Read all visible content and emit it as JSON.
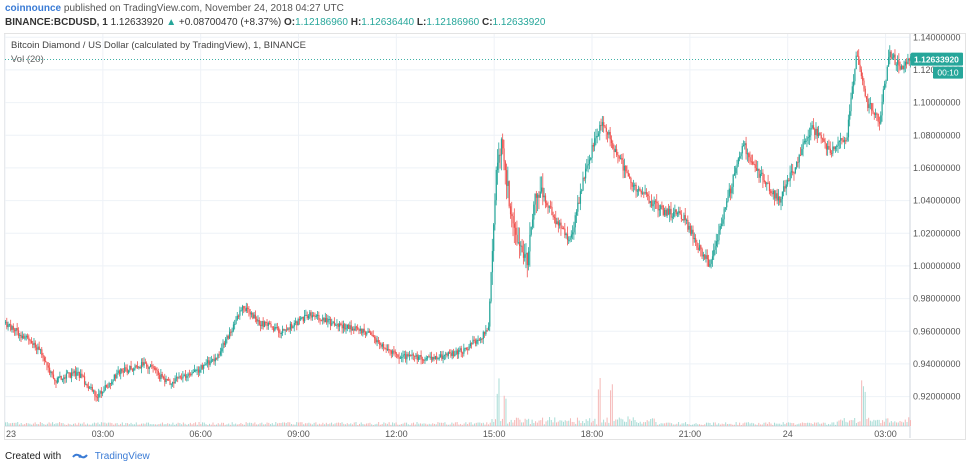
{
  "header": {
    "publisher": "coinnounce",
    "published_text": "published on TradingView.com, November 24, 2018 04:27 UTC",
    "symbol": "BINANCE:BCDUSD, 1",
    "last": "1.12633920",
    "change_arrow": "▲",
    "change": "+0.08700470 (+8.37%)",
    "o_label": "O:",
    "o_value": "1.12186960",
    "h_label": "H:",
    "h_value": "1.12636440",
    "l_label": "L:",
    "l_value": "1.12186960",
    "c_label": "C:",
    "c_value": "1.12633920"
  },
  "legend": {
    "title": "Bitcoin Diamond / US Dollar (calculated by TradingView), 1, BINANCE",
    "volume": "Vol (20)"
  },
  "price_badge": "1.12633920",
  "countdown_badge": "00:10",
  "footer": {
    "created_with": "Created with",
    "brand": "TradingView"
  },
  "colors": {
    "up": "#26a69a",
    "down": "#ef5350",
    "grid": "#eef2f7",
    "badge": "#26a69a"
  },
  "chart_data": {
    "type": "candlestick",
    "title": "Bitcoin Diamond / US Dollar (calculated by TradingView), 1, BINANCE",
    "x_ticks": [
      "23",
      "03:00",
      "06:00",
      "09:00",
      "12:00",
      "15:00",
      "18:00",
      "21:00",
      "24",
      "03:00"
    ],
    "y_ticks": [
      "1.14000000",
      "1.12000000",
      "1.10000000",
      "1.08000000",
      "1.06000000",
      "1.04000000",
      "1.02000000",
      "1.00000000",
      "0.98000000",
      "0.96000000",
      "0.94000000",
      "0.92000000"
    ],
    "ylim": [
      0.902,
      1.142
    ],
    "last_price": 1.1263392,
    "price_path": [
      {
        "t": 0.0,
        "p": 0.965
      },
      {
        "t": 1.0,
        "p": 0.95
      },
      {
        "t": 1.5,
        "p": 0.93
      },
      {
        "t": 2.2,
        "p": 0.935
      },
      {
        "t": 2.8,
        "p": 0.92
      },
      {
        "t": 3.5,
        "p": 0.935
      },
      {
        "t": 4.3,
        "p": 0.94
      },
      {
        "t": 5.0,
        "p": 0.928
      },
      {
        "t": 5.8,
        "p": 0.935
      },
      {
        "t": 6.5,
        "p": 0.945
      },
      {
        "t": 7.3,
        "p": 0.975
      },
      {
        "t": 7.8,
        "p": 0.965
      },
      {
        "t": 8.5,
        "p": 0.96
      },
      {
        "t": 9.3,
        "p": 0.97
      },
      {
        "t": 10.0,
        "p": 0.965
      },
      {
        "t": 11.0,
        "p": 0.96
      },
      {
        "t": 12.0,
        "p": 0.945
      },
      {
        "t": 13.0,
        "p": 0.943
      },
      {
        "t": 14.0,
        "p": 0.948
      },
      {
        "t": 14.8,
        "p": 0.96
      },
      {
        "t": 15.05,
        "p": 1.06
      },
      {
        "t": 15.2,
        "p": 1.075
      },
      {
        "t": 15.6,
        "p": 1.02
      },
      {
        "t": 16.0,
        "p": 1.005
      },
      {
        "t": 16.3,
        "p": 1.05
      },
      {
        "t": 16.8,
        "p": 1.03
      },
      {
        "t": 17.3,
        "p": 1.015
      },
      {
        "t": 17.8,
        "p": 1.06
      },
      {
        "t": 18.3,
        "p": 1.09
      },
      {
        "t": 18.7,
        "p": 1.07
      },
      {
        "t": 19.2,
        "p": 1.05
      },
      {
        "t": 20.0,
        "p": 1.035
      },
      {
        "t": 20.8,
        "p": 1.03
      },
      {
        "t": 21.3,
        "p": 1.01
      },
      {
        "t": 21.6,
        "p": 1.0
      },
      {
        "t": 22.0,
        "p": 1.03
      },
      {
        "t": 22.6,
        "p": 1.075
      },
      {
        "t": 23.0,
        "p": 1.06
      },
      {
        "t": 23.7,
        "p": 1.04
      },
      {
        "t": 24.2,
        "p": 1.06
      },
      {
        "t": 24.7,
        "p": 1.085
      },
      {
        "t": 25.3,
        "p": 1.07
      },
      {
        "t": 25.8,
        "p": 1.08
      },
      {
        "t": 26.1,
        "p": 1.13
      },
      {
        "t": 26.4,
        "p": 1.1
      },
      {
        "t": 26.8,
        "p": 1.09
      },
      {
        "t": 27.1,
        "p": 1.13
      },
      {
        "t": 27.5,
        "p": 1.12
      },
      {
        "t": 27.75,
        "p": 1.1263
      }
    ],
    "time_range_hours": [
      0,
      27.75
    ],
    "volume_spike_hours": [
      15.1,
      15.3,
      18.2,
      18.6,
      26.3
    ]
  }
}
